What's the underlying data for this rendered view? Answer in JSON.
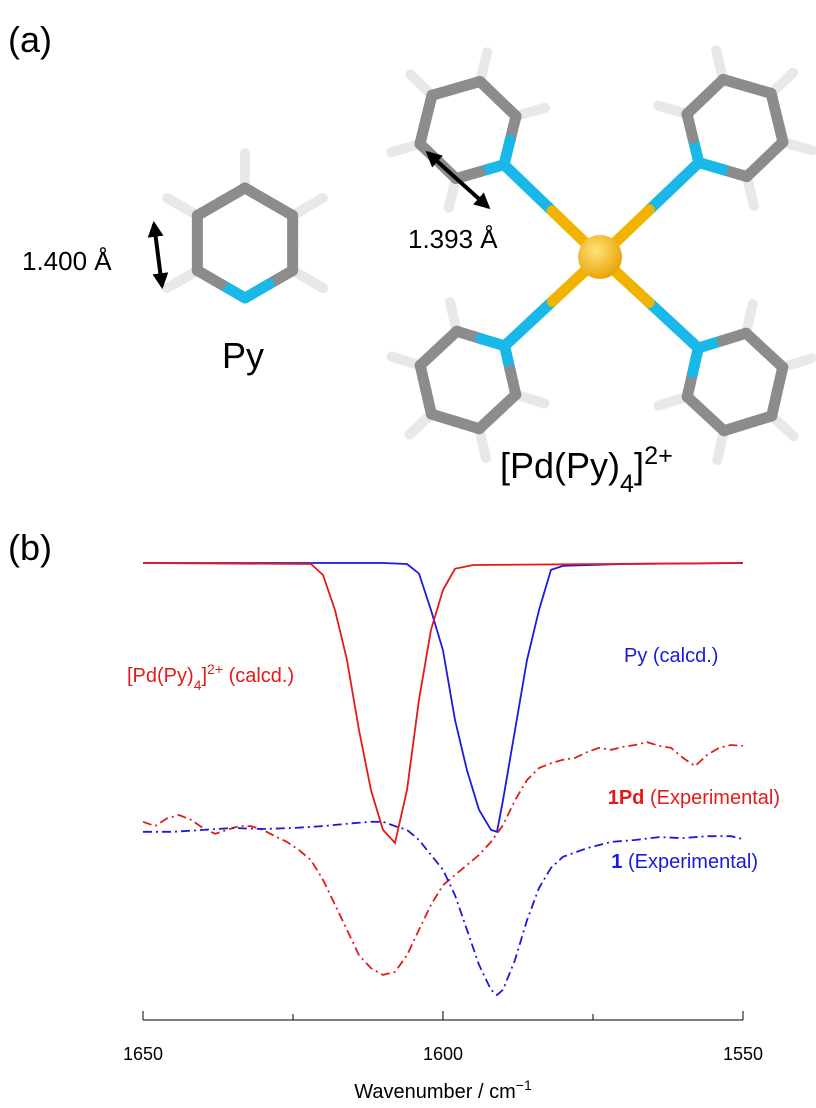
{
  "panel_a": {
    "label": "(a)",
    "py_bond": "1.400 Å",
    "py_label": "Py",
    "complex_bond": "1.393 Å",
    "complex_label_parts": [
      {
        "text": "[Pd(Py)",
        "style": "normal"
      },
      {
        "text": "4",
        "style": "sub"
      },
      {
        "text": "]",
        "style": "normal"
      },
      {
        "text": "2+",
        "style": "sup"
      }
    ]
  },
  "chart_data": {
    "type": "line",
    "label": "(b)",
    "xlabel_parts": [
      {
        "text": "Wavenumber / cm",
        "style": "normal"
      },
      {
        "text": "−1",
        "style": "sup"
      }
    ],
    "xlim": [
      1650,
      1550
    ],
    "xticks": [
      1650,
      1600,
      1550
    ],
    "minor_xticks": [
      1625,
      1575
    ],
    "ylim": [
      0,
      100
    ],
    "series": [
      {
        "label_parts": [
          {
            "text": "Py (calcd.)",
            "style": "normal"
          }
        ],
        "color": "#1a1adf",
        "dash": "solid",
        "x": [
          1650,
          1610,
          1606,
          1604,
          1602,
          1600,
          1598,
          1596,
          1594,
          1592,
          1591,
          1590,
          1588,
          1586,
          1584,
          1582,
          1580,
          1570,
          1550
        ],
        "values": [
          95.2,
          95.2,
          95,
          93,
          85.4,
          77,
          62.5,
          52,
          43.8,
          39.6,
          39.2,
          45.8,
          60.4,
          75,
          85.4,
          93.8,
          94.6,
          95,
          95.2
        ]
      },
      {
        "label_parts": [
          {
            "text": "[Pd(Py)",
            "style": "normal"
          },
          {
            "text": "4",
            "style": "sub"
          },
          {
            "text": "]",
            "style": "normal"
          },
          {
            "text": "2+",
            "style": "sup"
          },
          {
            "text": " (calcd.)",
            "style": "normal"
          }
        ],
        "color": "#e31a1a",
        "dash": "solid",
        "x": [
          1650,
          1622,
          1620,
          1618,
          1616,
          1614,
          1612,
          1610,
          1608,
          1606,
          1604,
          1602,
          1600,
          1598,
          1595,
          1550
        ],
        "values": [
          95.2,
          95,
          92.7,
          85.4,
          75,
          60.4,
          47.9,
          39.6,
          36.9,
          47.9,
          66.7,
          81.3,
          89.6,
          94,
          94.8,
          95.2
        ]
      },
      {
        "label_parts": [
          {
            "text": "1Pd",
            "style": "bold"
          },
          {
            "text": " (Experimental)",
            "style": "normal"
          }
        ],
        "color": "#e31a1a",
        "dash": "dashdot",
        "x": [
          1650,
          1648,
          1646,
          1644,
          1642,
          1640,
          1638,
          1636,
          1634,
          1632,
          1630,
          1628,
          1626,
          1624,
          1622,
          1620,
          1618,
          1616,
          1614,
          1612,
          1610,
          1608,
          1606,
          1604,
          1602,
          1600,
          1598,
          1596,
          1594,
          1592,
          1590,
          1588,
          1586,
          1584,
          1582,
          1580,
          1578,
          1576,
          1574,
          1572,
          1570,
          1568,
          1566,
          1564,
          1562,
          1560,
          1558,
          1556,
          1554,
          1552,
          1550
        ],
        "values": [
          41.3,
          40.4,
          42,
          42.7,
          41.7,
          40,
          38.8,
          39.6,
          40.4,
          40.4,
          39.6,
          38.3,
          37.1,
          35.4,
          33.3,
          29.2,
          24,
          18.8,
          13.5,
          10.8,
          9.4,
          10,
          13.5,
          18.8,
          24,
          28.1,
          30.2,
          32.3,
          34.4,
          37.1,
          40.6,
          45.8,
          50,
          52.5,
          53.5,
          54.2,
          54.6,
          55.8,
          56.7,
          56.3,
          56.9,
          57.3,
          57.9,
          57.1,
          56.7,
          54.6,
          52.9,
          55.2,
          56.7,
          57.3,
          57.1
        ]
      },
      {
        "label_parts": [
          {
            "text": "1",
            "style": "bold"
          },
          {
            "text": " (Experimental)",
            "style": "normal"
          }
        ],
        "color": "#1a1adf",
        "dash": "dashdot",
        "x": [
          1650,
          1645,
          1640,
          1635,
          1630,
          1625,
          1620,
          1615,
          1612,
          1610,
          1608,
          1606,
          1604,
          1602,
          1600,
          1598,
          1596,
          1594,
          1592,
          1591,
          1590,
          1588,
          1586,
          1584,
          1582,
          1580,
          1576,
          1572,
          1568,
          1564,
          1560,
          1556,
          1552,
          1550
        ],
        "values": [
          39.2,
          39.2,
          39.6,
          40,
          39.8,
          40,
          40.4,
          41,
          41.3,
          41.3,
          40.4,
          39.6,
          37.5,
          34.4,
          31.3,
          26,
          18.8,
          11.5,
          6.3,
          5.2,
          6.3,
          12.5,
          20.8,
          27.5,
          31.7,
          34,
          35.8,
          37.1,
          37.5,
          38.1,
          37.9,
          38.3,
          38.3,
          37.7
        ]
      }
    ]
  }
}
